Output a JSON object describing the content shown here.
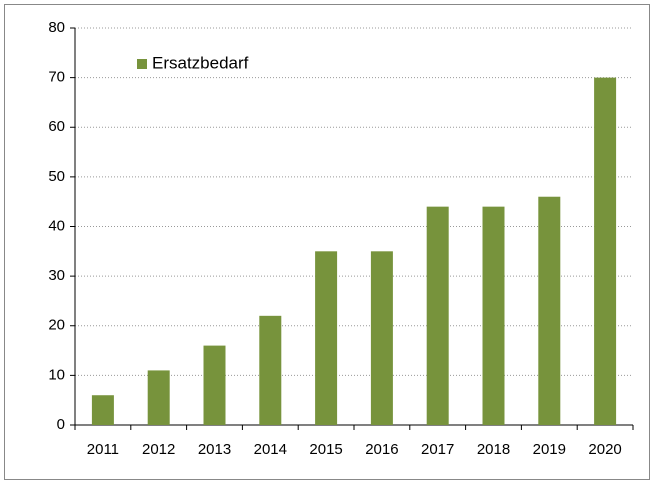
{
  "chart_data": {
    "type": "bar",
    "categories": [
      "2011",
      "2012",
      "2013",
      "2014",
      "2015",
      "2016",
      "2017",
      "2018",
      "2019",
      "2020"
    ],
    "series": [
      {
        "name": "Ersatzbedarf",
        "color": "#77933c",
        "values": [
          6,
          11,
          16,
          22,
          35,
          35,
          44,
          44,
          46,
          70
        ]
      }
    ],
    "ylim": [
      0,
      80
    ],
    "yticks": [
      0,
      10,
      20,
      30,
      40,
      50,
      60,
      70,
      80
    ],
    "grid": true,
    "legend": "upper left"
  }
}
